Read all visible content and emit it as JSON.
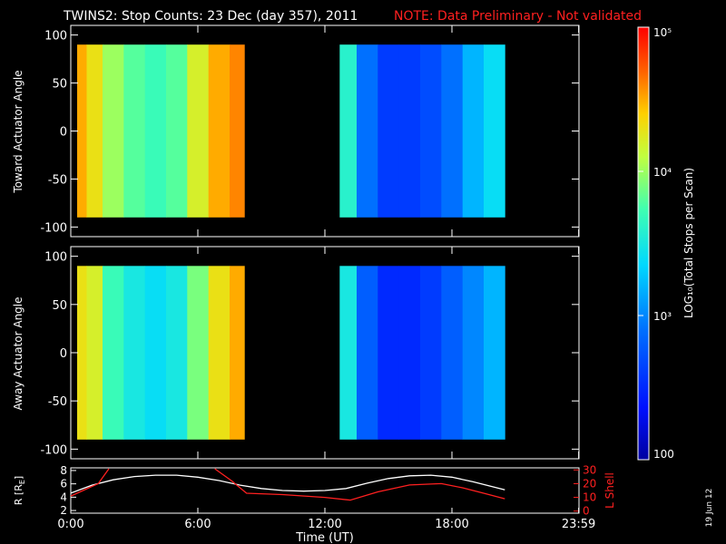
{
  "title": "TWINS2: Stop Counts: 23 Dec (day 357), 2011",
  "note": "NOTE: Data Preliminary - Not validated",
  "side_date": "19 Jun 12",
  "colorbar": {
    "label": "LOG₁₀(Total Stops per Scan)",
    "ticks": [
      {
        "value": 100000,
        "label": "10⁵"
      },
      {
        "value": 10000,
        "label": "10⁴"
      },
      {
        "value": 1000,
        "label": "10³"
      },
      {
        "value": 100,
        "label": "100"
      }
    ],
    "range": [
      100,
      100000
    ],
    "scale": "log"
  },
  "x_axis": {
    "label": "Time (UT)",
    "ticks": [
      "0:00",
      "6:00",
      "12:00",
      "18:00",
      "23:59"
    ],
    "tick_hours": [
      0,
      6,
      12,
      18,
      23.983
    ],
    "range_hours": [
      0,
      24
    ]
  },
  "chart_data": [
    {
      "type": "heatmap",
      "ylabel": "Toward Actuator Angle",
      "ylim": [
        -110,
        110
      ],
      "yticks": [
        100,
        50,
        0,
        -50,
        -100
      ],
      "angle_range": [
        -90,
        90
      ],
      "data_intervals_hours": [
        [
          0.3,
          8.2
        ],
        [
          12.7,
          20.5
        ]
      ],
      "columns": [
        {
          "hour": 0.5,
          "log_counts": 4.5
        },
        {
          "hour": 1.0,
          "log_counts": 4.3
        },
        {
          "hour": 2.0,
          "log_counts": 4.0
        },
        {
          "hour": 3.0,
          "log_counts": 3.8
        },
        {
          "hour": 4.0,
          "log_counts": 3.7
        },
        {
          "hour": 5.0,
          "log_counts": 3.8
        },
        {
          "hour": 6.0,
          "log_counts": 4.2
        },
        {
          "hour": 7.0,
          "log_counts": 4.5
        },
        {
          "hour": 8.0,
          "log_counts": 4.6
        },
        {
          "hour": 13.0,
          "log_counts": 3.6
        },
        {
          "hour": 14.0,
          "log_counts": 2.9
        },
        {
          "hour": 15.0,
          "log_counts": 2.6
        },
        {
          "hour": 16.0,
          "log_counts": 2.6
        },
        {
          "hour": 17.0,
          "log_counts": 2.7
        },
        {
          "hour": 18.0,
          "log_counts": 2.9
        },
        {
          "hour": 19.0,
          "log_counts": 3.2
        },
        {
          "hour": 20.0,
          "log_counts": 3.4
        }
      ]
    },
    {
      "type": "heatmap",
      "ylabel": "Away Actuator Angle",
      "ylim": [
        -110,
        110
      ],
      "yticks": [
        100,
        50,
        0,
        -50,
        -100
      ],
      "angle_range": [
        -90,
        90
      ],
      "data_intervals_hours": [
        [
          0.3,
          8.2
        ],
        [
          12.7,
          20.5
        ]
      ],
      "columns": [
        {
          "hour": 0.5,
          "log_counts": 4.3
        },
        {
          "hour": 1.0,
          "log_counts": 4.2
        },
        {
          "hour": 2.0,
          "log_counts": 3.7
        },
        {
          "hour": 3.0,
          "log_counts": 3.5
        },
        {
          "hour": 4.0,
          "log_counts": 3.4
        },
        {
          "hour": 5.0,
          "log_counts": 3.5
        },
        {
          "hour": 6.0,
          "log_counts": 3.9
        },
        {
          "hour": 7.0,
          "log_counts": 4.3
        },
        {
          "hour": 8.0,
          "log_counts": 4.5
        },
        {
          "hour": 13.0,
          "log_counts": 3.5
        },
        {
          "hour": 14.0,
          "log_counts": 2.8
        },
        {
          "hour": 15.0,
          "log_counts": 2.5
        },
        {
          "hour": 16.0,
          "log_counts": 2.5
        },
        {
          "hour": 17.0,
          "log_counts": 2.6
        },
        {
          "hour": 18.0,
          "log_counts": 2.8
        },
        {
          "hour": 19.0,
          "log_counts": 3.0
        },
        {
          "hour": 20.0,
          "log_counts": 3.2
        }
      ]
    },
    {
      "type": "line",
      "ylabel": "R [R_E]",
      "y2label": "L Shell",
      "ylim": [
        2,
        8
      ],
      "yticks": [
        8,
        6,
        4,
        2
      ],
      "y2lim": [
        0,
        30
      ],
      "y2ticks": [
        30,
        20,
        10,
        0
      ],
      "series": [
        {
          "axis": "left",
          "color": "#ffffff",
          "x": [
            0,
            1,
            2,
            3,
            4,
            5,
            6,
            7,
            8,
            9,
            10,
            11,
            12,
            13,
            14,
            15,
            16,
            17,
            18,
            19,
            20.5
          ],
          "y": [
            4.6,
            5.8,
            6.6,
            7.1,
            7.3,
            7.3,
            7.0,
            6.5,
            5.8,
            5.3,
            5.0,
            4.9,
            5.0,
            5.3,
            6.1,
            6.8,
            7.2,
            7.3,
            7.0,
            6.3,
            5.1
          ]
        },
        {
          "axis": "right",
          "color": "#ff2020",
          "x": [
            0,
            1.3,
            1.8,
            null,
            6.8,
            7.6,
            8.3,
            10,
            12,
            13.2,
            14.5,
            16,
            17.5,
            18.5,
            19.5,
            20.5
          ],
          "y": [
            11,
            20,
            31,
            null,
            31,
            22,
            13,
            12,
            10,
            8,
            14,
            19,
            20,
            17,
            13,
            9
          ]
        }
      ]
    }
  ]
}
